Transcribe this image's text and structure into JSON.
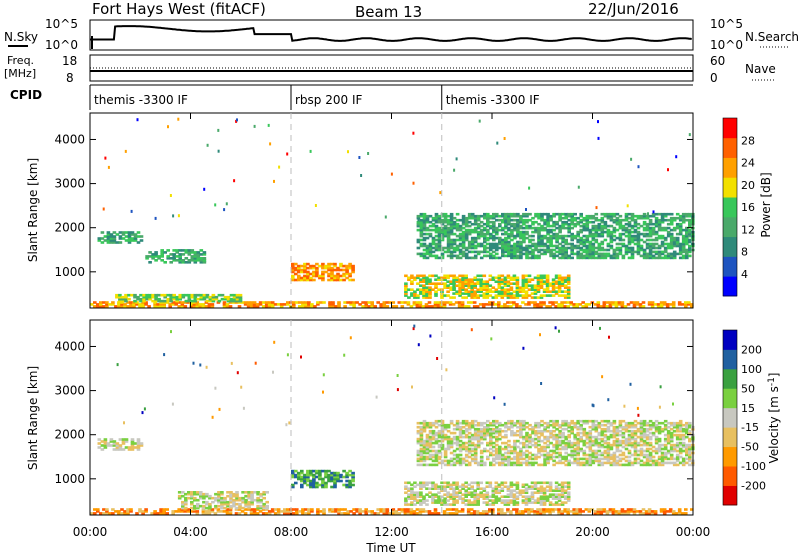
{
  "header": {
    "title": "Fort Hays West (fitACF)",
    "beam": "Beam 13",
    "date": "22/Jun/2016"
  },
  "nsky_panel": {
    "left_label": "N.Sky",
    "right_label": "N.Search",
    "left_ticks": [
      "10^5",
      "10^0"
    ],
    "right_ticks": [
      "10^5",
      "10^0"
    ]
  },
  "freq_panel": {
    "left_label_line1": "Freq.",
    "left_label_line2": "[MHz]",
    "right_label": "Nave",
    "left_ticks": [
      "18",
      "8"
    ],
    "right_ticks": [
      "60",
      "0"
    ]
  },
  "cpid": {
    "label": "CPID",
    "segments": [
      {
        "start": 0,
        "end": 8,
        "text": "themis -3300 IF"
      },
      {
        "start": 8,
        "end": 14,
        "text": "rbsp 200 IF"
      },
      {
        "start": 14,
        "end": 24,
        "text": "themis -3300 IF"
      }
    ]
  },
  "x_axis": {
    "label": "Time UT",
    "ticks": [
      0,
      4,
      8,
      12,
      16,
      20,
      24
    ],
    "tick_labels": [
      "00:00",
      "04:00",
      "08:00",
      "12:00",
      "16:00",
      "20:00",
      "00:00"
    ],
    "divider_hours": [
      8,
      14
    ]
  },
  "colors": {
    "power": [
      "#0000ff",
      "#1e54c0",
      "#2f8a7a",
      "#4aa96a",
      "#38c75a",
      "#f2e000",
      "#ffa000",
      "#ff6000",
      "#ff0000"
    ],
    "velocity": [
      "#e00000",
      "#ff5a00",
      "#ff9a00",
      "#e8c060",
      "#c8c8c0",
      "#7ad040",
      "#3aa040",
      "#2060a0",
      "#0000c0"
    ]
  },
  "chart_data": [
    {
      "type": "heatmap",
      "title": "Power",
      "xlabel": "Time UT",
      "ylabel": "Slant Range [km]",
      "ylim": [
        180,
        4600
      ],
      "yticks": [
        1000,
        2000,
        3000,
        4000
      ],
      "colorbar_label": "Power [dB]",
      "colorbar_ticks": [
        4,
        8,
        12,
        16,
        20,
        24,
        28
      ],
      "xlim": [
        0,
        24
      ],
      "bands": [
        {
          "x": [
            0.0,
            24.0
          ],
          "y": [
            200,
            320
          ],
          "level": 6
        },
        {
          "x": [
            1.0,
            6.0
          ],
          "y": [
            320,
            480
          ],
          "level": 4
        },
        {
          "x": [
            0.3,
            2.0
          ],
          "y": [
            1650,
            1900
          ],
          "level": 3
        },
        {
          "x": [
            2.2,
            4.5
          ],
          "y": [
            1200,
            1500
          ],
          "level": 3
        },
        {
          "x": [
            8.0,
            10.5
          ],
          "y": [
            800,
            1200
          ],
          "level": 6
        },
        {
          "x": [
            12.5,
            19.0
          ],
          "y": [
            400,
            900
          ],
          "level": 5
        },
        {
          "x": [
            13.0,
            24.0
          ],
          "y": [
            1300,
            2300
          ],
          "level": 3
        }
      ]
    },
    {
      "type": "heatmap",
      "title": "Velocity",
      "xlabel": "Time UT",
      "ylabel": "Slant Range [km]",
      "ylim": [
        180,
        4600
      ],
      "yticks": [
        1000,
        2000,
        3000,
        4000
      ],
      "colorbar_label": "Velocity [m s^-1]",
      "colorbar_ticks": [
        200,
        100,
        50,
        15,
        -15,
        -50,
        -100,
        -200
      ],
      "xlim": [
        0,
        24
      ],
      "bands": [
        {
          "x": [
            0.0,
            24.0
          ],
          "y": [
            200,
            320
          ],
          "level": 2
        },
        {
          "x": [
            3.5,
            7.0
          ],
          "y": [
            320,
            700
          ],
          "level": 4
        },
        {
          "x": [
            0.3,
            2.0
          ],
          "y": [
            1650,
            1900
          ],
          "level": 4
        },
        {
          "x": [
            8.0,
            10.5
          ],
          "y": [
            800,
            1200
          ],
          "level": 6
        },
        {
          "x": [
            12.5,
            19.0
          ],
          "y": [
            400,
            900
          ],
          "level": 4
        },
        {
          "x": [
            13.0,
            24.0
          ],
          "y": [
            1300,
            2300
          ],
          "level": 4
        }
      ]
    }
  ]
}
